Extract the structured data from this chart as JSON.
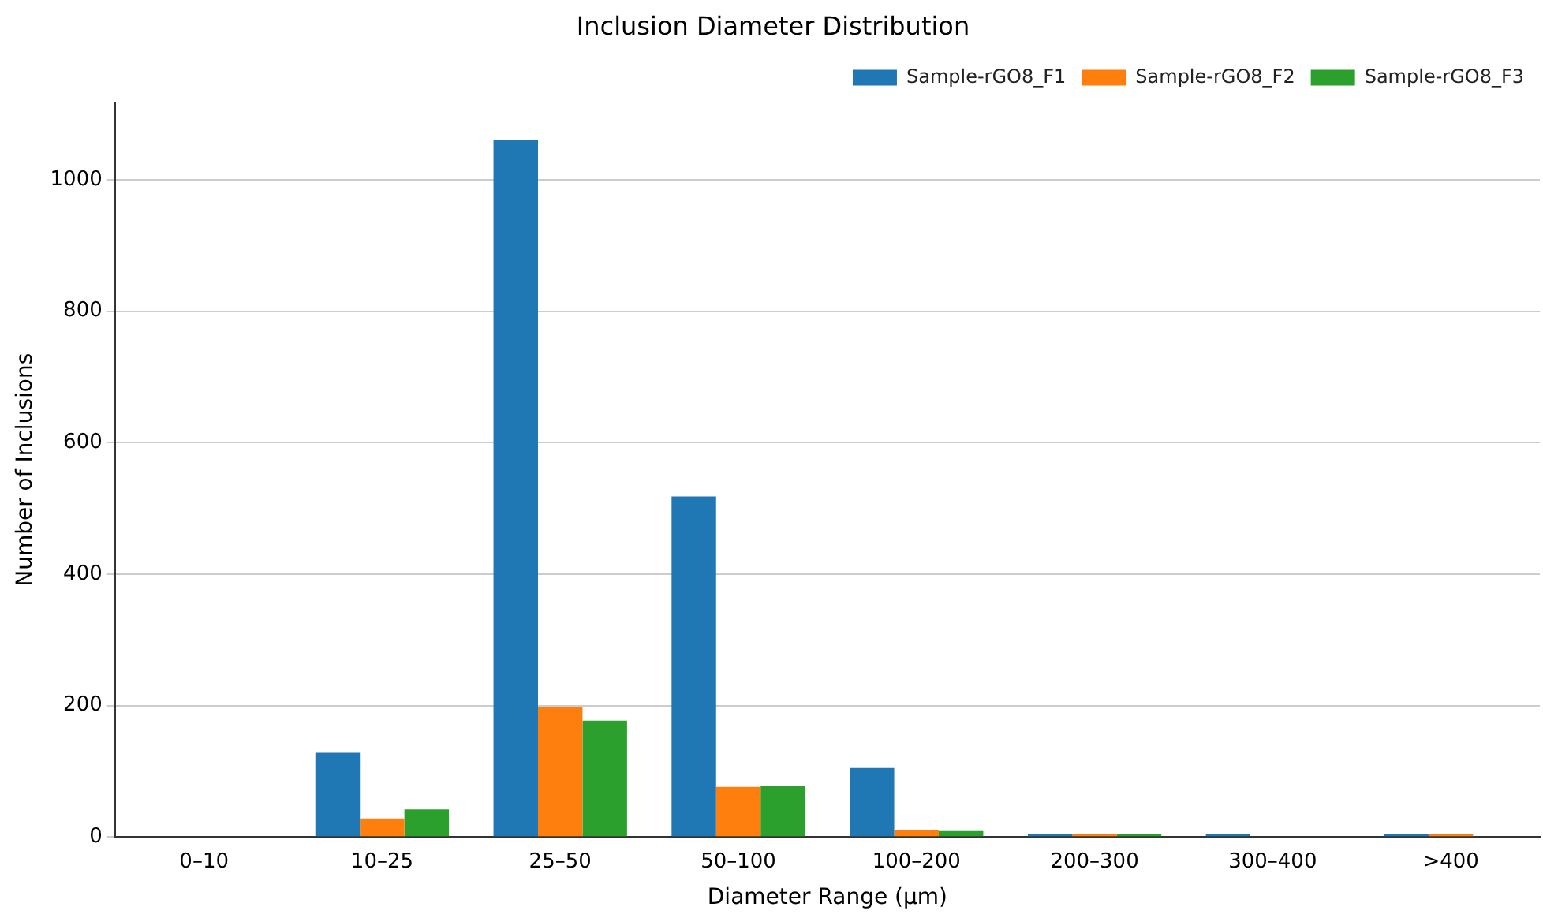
{
  "chart_data": {
    "type": "bar",
    "title": "Inclusion Diameter Distribution",
    "xlabel": "Diameter Range (µm)",
    "ylabel": "Number of Inclusions",
    "categories": [
      "0–10",
      "10–25",
      "25–50",
      "50–100",
      "100–200",
      "200–300",
      "300–400",
      ">400"
    ],
    "series": [
      {
        "name": "Sample-rGO8_F1",
        "color": "#1f77b4",
        "values": [
          0,
          128,
          1060,
          518,
          105,
          5,
          2,
          2
        ]
      },
      {
        "name": "Sample-rGO8_F2",
        "color": "#ff7f0e",
        "values": [
          0,
          28,
          198,
          76,
          11,
          2,
          0,
          2
        ]
      },
      {
        "name": "Sample-rGO8_F3",
        "color": "#2ca02c",
        "values": [
          0,
          42,
          177,
          78,
          9,
          5,
          0,
          0
        ]
      }
    ],
    "ylim": [
      0,
      1117
    ],
    "yticks": [
      0,
      200,
      400,
      600,
      800,
      1000
    ],
    "grid": "y",
    "legend": "top right"
  }
}
